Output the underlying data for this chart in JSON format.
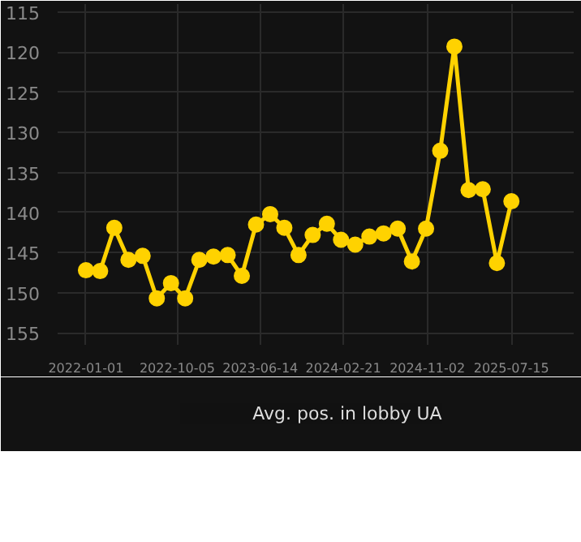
{
  "chart_data": {
    "type": "line",
    "x": [
      "2022-01-01",
      "2022-02-13",
      "2022-03-28",
      "2022-05-10",
      "2022-06-22",
      "2022-08-04",
      "2022-09-16",
      "2022-10-29",
      "2022-12-11",
      "2023-01-23",
      "2023-03-07",
      "2023-04-19",
      "2023-06-01",
      "2023-07-14",
      "2023-08-26",
      "2023-10-08",
      "2023-11-20",
      "2024-01-02",
      "2024-02-14",
      "2024-03-28",
      "2024-05-10",
      "2024-06-22",
      "2024-08-04",
      "2024-09-16",
      "2024-10-29",
      "2024-12-11",
      "2025-01-23",
      "2025-03-07",
      "2025-04-19",
      "2025-06-01",
      "2025-07-15"
    ],
    "series": [
      {
        "name": "Avg. pos. in lobby UA",
        "color": "#ffd200",
        "values": [
          147.2,
          147.3,
          141.9,
          145.9,
          145.4,
          150.7,
          148.8,
          150.7,
          145.9,
          145.5,
          145.3,
          147.9,
          141.5,
          140.2,
          141.9,
          145.3,
          142.8,
          141.4,
          143.4,
          144.0,
          143.0,
          142.6,
          142.0,
          146.1,
          142.0,
          132.3,
          119.3,
          137.2,
          137.1,
          146.3,
          138.6
        ]
      }
    ],
    "ylim": [
      156.5,
      114
    ],
    "yticks": [
      115,
      120,
      125,
      130,
      135,
      140,
      145,
      150,
      155
    ],
    "xlim": [
      "2021-10-07",
      "2026-01-20"
    ],
    "xticks": [
      "2022-01-01",
      "2022-10-05",
      "2023-06-14",
      "2024-02-21",
      "2024-11-02",
      "2025-07-15"
    ],
    "grid": true,
    "legend": "bottom",
    "marker": "circle",
    "line_style": "solid"
  }
}
